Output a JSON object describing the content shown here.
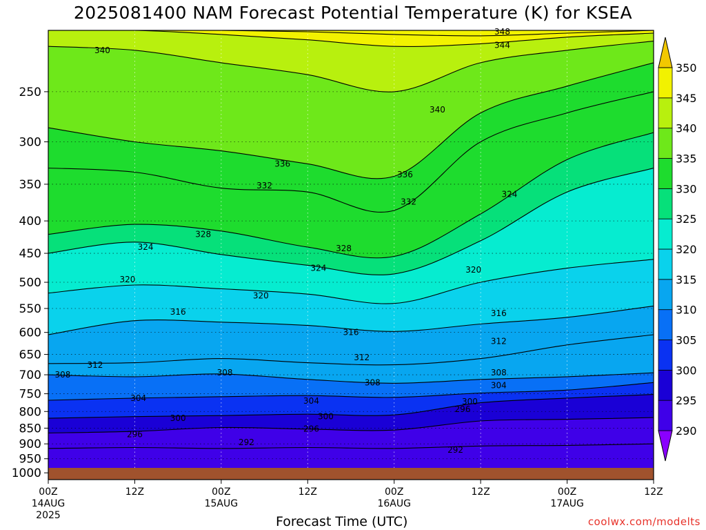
{
  "title": "2025081400 NAM Forecast Potential Temperature (K) for KSEA",
  "credit": "coolwx.com/modelts",
  "chart_data": {
    "type": "contour",
    "title": "2025081400 NAM Forecast Potential Temperature (K) for KSEA",
    "variable": "Potential Temperature (K)",
    "station": "KSEA",
    "xlabel": "Forecast Time (UTC)",
    "x_ticks": [
      {
        "hour": 0,
        "label": "00Z",
        "sub": "14AUG",
        "sub2": "2025"
      },
      {
        "hour": 12,
        "label": "12Z",
        "sub": "",
        "sub2": ""
      },
      {
        "hour": 24,
        "label": "00Z",
        "sub": "15AUG",
        "sub2": ""
      },
      {
        "hour": 36,
        "label": "12Z",
        "sub": "",
        "sub2": ""
      },
      {
        "hour": 48,
        "label": "00Z",
        "sub": "16AUG",
        "sub2": ""
      },
      {
        "hour": 60,
        "label": "12Z",
        "sub": "",
        "sub2": ""
      },
      {
        "hour": 72,
        "label": "00Z",
        "sub": "17AUG",
        "sub2": ""
      },
      {
        "hour": 84,
        "label": "12Z",
        "sub": "",
        "sub2": ""
      }
    ],
    "x_range_hours": [
      0,
      84
    ],
    "y_ticks_hpa": [
      250,
      300,
      350,
      400,
      450,
      500,
      550,
      600,
      650,
      700,
      750,
      800,
      850,
      900,
      950,
      1000
    ],
    "y_range_hpa": [
      200,
      1025
    ],
    "y_scale": "log-pressure, inverted",
    "grid": "dotted",
    "colorbar": {
      "ticks": [
        290,
        295,
        300,
        305,
        310,
        315,
        320,
        325,
        330,
        335,
        340,
        345,
        350
      ],
      "colors": [
        "#8a00ff",
        "#3f00e8",
        "#1a00d6",
        "#0a32f2",
        "#0870f6",
        "#08a6f0",
        "#0ad2ec",
        "#06ecd0",
        "#06e07a",
        "#1edc2e",
        "#6ee81a",
        "#b8f00e",
        "#f2f200",
        "#f2c800"
      ]
    },
    "ground_color": "#a0522d",
    "series": [
      {
        "name": "292",
        "x": [
          0,
          12,
          24,
          36,
          48,
          60,
          72,
          84
        ],
        "y": [
          915,
          912,
          915,
          912,
          915,
          907,
          905,
          900
        ]
      },
      {
        "name": "296",
        "x": [
          0,
          12,
          24,
          36,
          48,
          60,
          72,
          84
        ],
        "y": [
          865,
          860,
          848,
          853,
          856,
          828,
          823,
          818
        ]
      },
      {
        "name": "300",
        "x": [
          0,
          12,
          24,
          36,
          48,
          60,
          72,
          84
        ],
        "y": [
          820,
          815,
          812,
          808,
          810,
          775,
          762,
          752
        ]
      },
      {
        "name": "304",
        "x": [
          0,
          12,
          24,
          36,
          48,
          60,
          72,
          84
        ],
        "y": [
          768,
          762,
          758,
          755,
          760,
          748,
          740,
          720
        ]
      },
      {
        "name": "308",
        "x": [
          0,
          12,
          24,
          36,
          48,
          60,
          72,
          84
        ],
        "y": [
          700,
          705,
          698,
          712,
          722,
          712,
          705,
          695
        ]
      },
      {
        "name": "312",
        "x": [
          0,
          12,
          24,
          36,
          48,
          60,
          72,
          84
        ],
        "y": [
          672,
          670,
          660,
          670,
          675,
          660,
          628,
          605
        ]
      },
      {
        "name": "316",
        "x": [
          0,
          12,
          24,
          36,
          48,
          60,
          72,
          84
        ],
        "y": [
          605,
          575,
          578,
          585,
          598,
          582,
          568,
          545
        ]
      },
      {
        "name": "320",
        "x": [
          0,
          12,
          24,
          36,
          48,
          60,
          72,
          84
        ],
        "y": [
          520,
          505,
          512,
          522,
          540,
          500,
          475,
          460
        ]
      },
      {
        "name": "324",
        "x": [
          0,
          12,
          24,
          36,
          48,
          60,
          72,
          84
        ],
        "y": [
          450,
          432,
          452,
          470,
          485,
          430,
          360,
          330
        ]
      },
      {
        "name": "328",
        "x": [
          0,
          12,
          24,
          36,
          48,
          60,
          72,
          84
        ],
        "y": [
          420,
          405,
          415,
          440,
          455,
          390,
          320,
          290
        ]
      },
      {
        "name": "332",
        "x": [
          0,
          12,
          24,
          36,
          48,
          60,
          72,
          84
        ],
        "y": [
          330,
          335,
          355,
          360,
          385,
          300,
          270,
          250
        ]
      },
      {
        "name": "336",
        "x": [
          0,
          12,
          24,
          36,
          48,
          60,
          72,
          84
        ],
        "y": [
          285,
          300,
          310,
          325,
          340,
          270,
          245,
          225
        ]
      },
      {
        "name": "340",
        "x": [
          0,
          12,
          24,
          36,
          48,
          60,
          72,
          84
        ],
        "y": [
          212,
          215,
          225,
          235,
          250,
          225,
          215,
          208
        ]
      },
      {
        "name": "344",
        "x": [
          0,
          12,
          24,
          36,
          48,
          60,
          72,
          84
        ],
        "y": [
          200,
          200,
          203,
          207,
          212,
          210,
          205,
          202
        ]
      },
      {
        "name": "348",
        "x": [
          0,
          12,
          24,
          36,
          48,
          60,
          72,
          84
        ],
        "y": [
          200,
          200,
          200,
          201,
          203,
          204,
          202,
          200
        ]
      }
    ],
    "contour_labels": [
      {
        "text": "340",
        "hour": 7.5,
        "hpa": 215
      },
      {
        "text": "348",
        "hour": 63,
        "hpa": 201
      },
      {
        "text": "344",
        "hour": 63,
        "hpa": 211
      },
      {
        "text": "340",
        "hour": 54,
        "hpa": 267
      },
      {
        "text": "336",
        "hour": 32.5,
        "hpa": 325
      },
      {
        "text": "336",
        "hour": 49.5,
        "hpa": 338
      },
      {
        "text": "332",
        "hour": 30,
        "hpa": 352
      },
      {
        "text": "332",
        "hour": 50,
        "hpa": 373
      },
      {
        "text": "324",
        "hour": 64,
        "hpa": 363
      },
      {
        "text": "328",
        "hour": 21.5,
        "hpa": 420
      },
      {
        "text": "328",
        "hour": 41,
        "hpa": 442
      },
      {
        "text": "324",
        "hour": 13.5,
        "hpa": 440
      },
      {
        "text": "324",
        "hour": 37.5,
        "hpa": 475
      },
      {
        "text": "320",
        "hour": 11,
        "hpa": 495
      },
      {
        "text": "320",
        "hour": 29.5,
        "hpa": 525
      },
      {
        "text": "320",
        "hour": 59,
        "hpa": 478
      },
      {
        "text": "316",
        "hour": 18,
        "hpa": 557
      },
      {
        "text": "316",
        "hour": 42,
        "hpa": 600
      },
      {
        "text": "316",
        "hour": 62.5,
        "hpa": 560
      },
      {
        "text": "312",
        "hour": 6.5,
        "hpa": 676
      },
      {
        "text": "312",
        "hour": 43.5,
        "hpa": 657
      },
      {
        "text": "312",
        "hour": 62.5,
        "hpa": 620
      },
      {
        "text": "308",
        "hour": 2,
        "hpa": 700
      },
      {
        "text": "308",
        "hour": 24.5,
        "hpa": 695
      },
      {
        "text": "308",
        "hour": 45,
        "hpa": 720
      },
      {
        "text": "308",
        "hour": 62.5,
        "hpa": 695
      },
      {
        "text": "304",
        "hour": 12.5,
        "hpa": 762
      },
      {
        "text": "304",
        "hour": 36.5,
        "hpa": 770
      },
      {
        "text": "304",
        "hour": 62.5,
        "hpa": 728
      },
      {
        "text": "300",
        "hour": 18,
        "hpa": 820
      },
      {
        "text": "300",
        "hour": 38.5,
        "hpa": 815
      },
      {
        "text": "300",
        "hour": 58.5,
        "hpa": 772
      },
      {
        "text": "296",
        "hour": 12,
        "hpa": 870
      },
      {
        "text": "296",
        "hour": 36.5,
        "hpa": 852
      },
      {
        "text": "296",
        "hour": 57.5,
        "hpa": 793
      },
      {
        "text": "292",
        "hour": 27.5,
        "hpa": 895
      },
      {
        "text": "292",
        "hour": 56.5,
        "hpa": 920
      }
    ]
  }
}
